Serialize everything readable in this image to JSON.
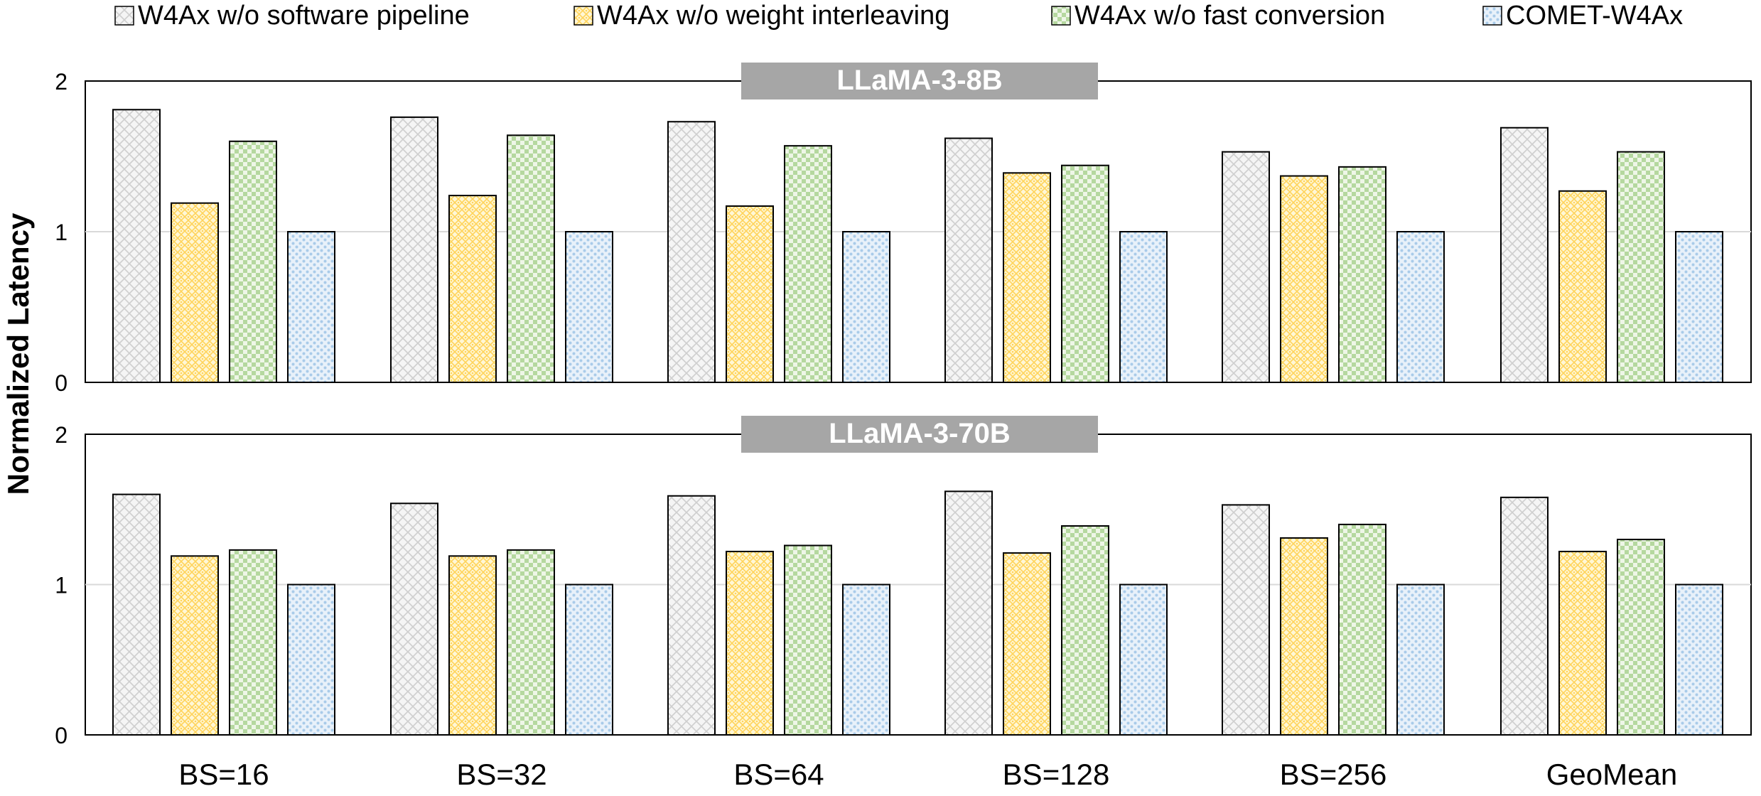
{
  "legend": {
    "items": [
      {
        "label": "W4Ax w/o software pipeline",
        "pattern": "pat-diamond",
        "color": "#d9d9d9"
      },
      {
        "label": "W4Ax w/o weight interleaving",
        "pattern": "pat-yellow",
        "color": "#ffd966"
      },
      {
        "label": "W4Ax w/o fast conversion",
        "pattern": "pat-check",
        "color": "#a9d18e"
      },
      {
        "label": "COMET-W4Ax",
        "pattern": "pat-blue",
        "color": "#9dc3e6"
      }
    ]
  },
  "ylabel": "Normalized Latency",
  "chart_data": [
    {
      "type": "bar",
      "title": "LLaMA-3-8B",
      "categories": [
        "BS=16",
        "BS=32",
        "BS=64",
        "BS=128",
        "BS=256",
        "GeoMean"
      ],
      "ylabel": "Normalized Latency",
      "ylim": [
        0,
        2
      ],
      "yticks": [
        "0",
        "1",
        "2"
      ],
      "grid": true,
      "legend_position": "top",
      "series": [
        {
          "name": "W4Ax w/o software pipeline",
          "values": [
            1.81,
            1.76,
            1.73,
            1.62,
            1.53,
            1.69
          ]
        },
        {
          "name": "W4Ax w/o weight interleaving",
          "values": [
            1.19,
            1.24,
            1.17,
            1.39,
            1.37,
            1.27
          ]
        },
        {
          "name": "W4Ax w/o fast conversion",
          "values": [
            1.6,
            1.64,
            1.57,
            1.44,
            1.43,
            1.53
          ]
        },
        {
          "name": "COMET-W4Ax",
          "values": [
            1.0,
            1.0,
            1.0,
            1.0,
            1.0,
            1.0
          ]
        }
      ]
    },
    {
      "type": "bar",
      "title": "LLaMA-3-70B",
      "categories": [
        "BS=16",
        "BS=32",
        "BS=64",
        "BS=128",
        "BS=256",
        "GeoMean"
      ],
      "ylabel": "Normalized Latency",
      "ylim": [
        0,
        2
      ],
      "yticks": [
        "0",
        "1",
        "2"
      ],
      "grid": true,
      "legend_position": "top",
      "series": [
        {
          "name": "W4Ax w/o software pipeline",
          "values": [
            1.6,
            1.54,
            1.59,
            1.62,
            1.53,
            1.58
          ]
        },
        {
          "name": "W4Ax w/o weight interleaving",
          "values": [
            1.19,
            1.19,
            1.22,
            1.21,
            1.31,
            1.22
          ]
        },
        {
          "name": "W4Ax w/o fast conversion",
          "values": [
            1.23,
            1.23,
            1.26,
            1.39,
            1.4,
            1.3
          ]
        },
        {
          "name": "COMET-W4Ax",
          "values": [
            1.0,
            1.0,
            1.0,
            1.0,
            1.0,
            1.0
          ]
        }
      ]
    }
  ]
}
